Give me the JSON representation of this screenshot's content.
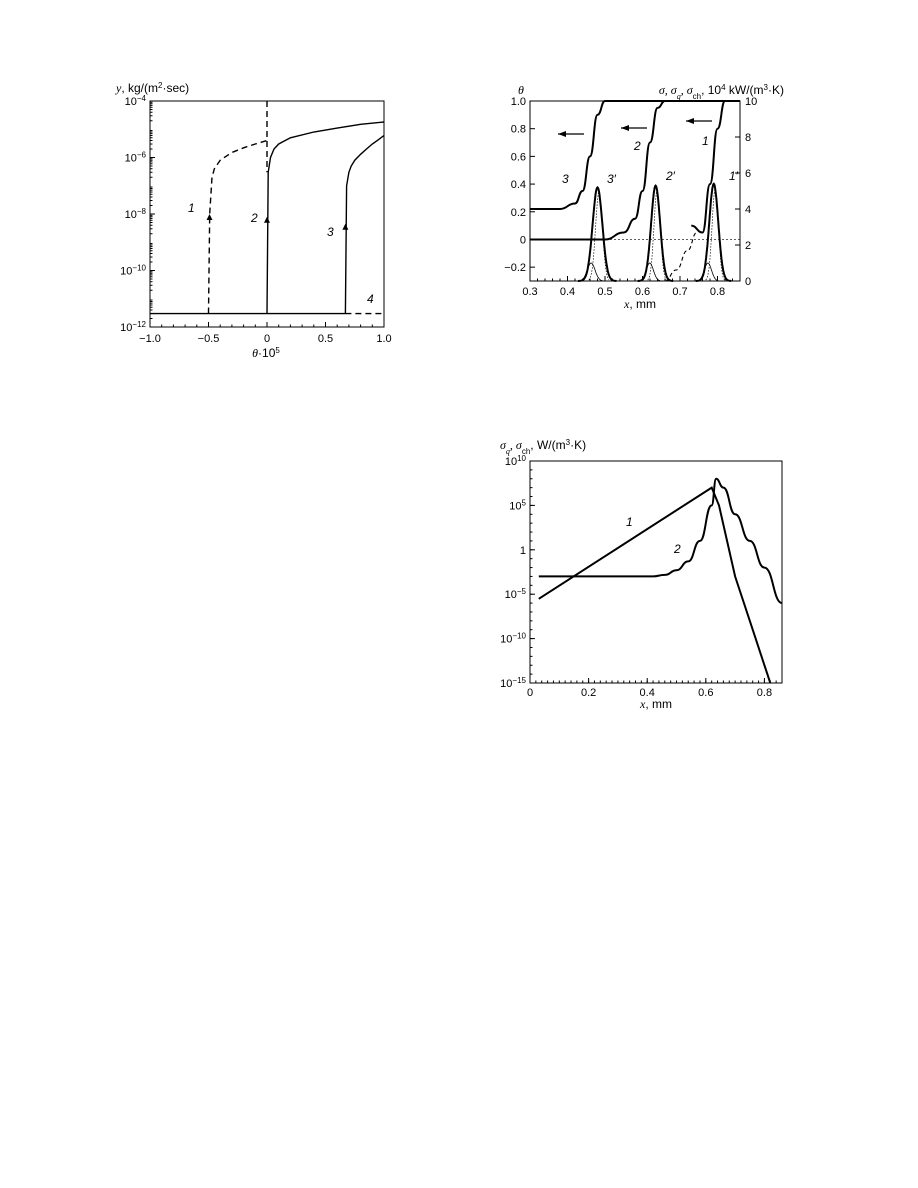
{
  "chart_data": [
    {
      "type": "line",
      "id": "left",
      "ylabel": "y, kg/(m2·sec)",
      "ylabel_sym": "y",
      "ylabel_unit": ", kg/(m",
      "ylabel_unit_sup": "2",
      "ylabel_unit_end": "·sec)",
      "xlabel": "θ·10^5",
      "xlabel_sym": "θ",
      "xlabel_mid": "·10",
      "xlabel_sup": "5",
      "xlim": [
        -1.0,
        1.0
      ],
      "ylim": [
        1e-12,
        0.0001
      ],
      "yscale": "log",
      "xticks": [
        "−1.0",
        "−0.5",
        "0",
        "0.5",
        "1.0"
      ],
      "yticks": [
        {
          "base": "10",
          "exp": "−4"
        },
        {
          "base": "10",
          "exp": "−6"
        },
        {
          "base": "10",
          "exp": "−8"
        },
        {
          "base": "10",
          "exp": "−10"
        },
        {
          "base": "10",
          "exp": "−12"
        }
      ],
      "series": [
        {
          "name": "1",
          "style": "dashed",
          "x": [
            -0.5,
            -0.49,
            -0.47,
            -0.45,
            -0.4,
            -0.3,
            -0.2,
            -0.1,
            0.0
          ],
          "y": [
            3e-12,
            1e-08,
            2e-07,
            4e-07,
            8e-07,
            1.5e-06,
            2.2e-06,
            3e-06,
            4e-06
          ]
        },
        {
          "name": "2",
          "style": "solid",
          "x": [
            0.0,
            0.01,
            0.03,
            0.06,
            0.1,
            0.2,
            0.4,
            0.6,
            0.8,
            1.0
          ],
          "y": [
            3e-12,
            3e-07,
            1e-06,
            2e-06,
            3e-06,
            5e-06,
            8e-06,
            1.1e-05,
            1.5e-05,
            1.8e-05
          ]
        },
        {
          "name": "3",
          "style": "solid",
          "x": [
            0.67,
            0.68,
            0.7,
            0.72,
            0.75,
            0.8,
            0.85,
            0.9,
            0.95,
            1.0
          ],
          "y": [
            3e-12,
            1e-07,
            3e-07,
            5e-07,
            8e-07,
            1.3e-06,
            2e-06,
            3e-06,
            4.2e-06,
            6e-06
          ]
        },
        {
          "name": "4",
          "style": "solid",
          "x": [
            -1.0,
            0.67
          ],
          "y": [
            3e-12,
            3e-12
          ]
        }
      ]
    },
    {
      "type": "line",
      "id": "topright",
      "ylabel_left": "θ",
      "ylabel_right_sym": "σ, σ",
      "ylabel_right_sub1": "q",
      "ylabel_right_mid": ", σ",
      "ylabel_right_sub2": "ch",
      "ylabel_right_unit": ", 10",
      "ylabel_right_sup": "4",
      "ylabel_right_end": " kW/(m",
      "ylabel_right_sup2": "3",
      "ylabel_right_end2": "·K)",
      "xlabel_sym": "x",
      "xlabel_unit": ", mm",
      "xlim": [
        0.3,
        0.86
      ],
      "ylim_left": [
        -0.3,
        1.0
      ],
      "ylim_right": [
        0,
        10
      ],
      "xticks": [
        "0.3",
        "0.4",
        "0.5",
        "0.6",
        "0.7",
        "0.8"
      ],
      "yticks_left": [
        "1.0",
        "0.8",
        "0.6",
        "0.4",
        "0.2",
        "0",
        "−0.2"
      ],
      "yticks_right": [
        "10",
        "8",
        "6",
        "4",
        "2",
        "0"
      ],
      "theta_series": [
        {
          "name": "1",
          "x": [
            0.3,
            0.66,
            0.69,
            0.72,
            0.75,
            0.78,
            0.8,
            0.82,
            0.86
          ],
          "y": [
            0,
            -0.3,
            -0.22,
            -0.08,
            0.05,
            0.4,
            0.8,
            1.0,
            1.0
          ]
        },
        {
          "name": "2",
          "x": [
            0.3,
            0.5,
            0.55,
            0.58,
            0.6,
            0.62,
            0.64,
            0.66,
            0.86
          ],
          "y": [
            0,
            0.0,
            0.05,
            0.15,
            0.35,
            0.7,
            0.95,
            1.0,
            1.0
          ]
        },
        {
          "name": "3",
          "x": [
            0.3,
            0.38,
            0.42,
            0.44,
            0.46,
            0.48,
            0.5,
            0.86
          ],
          "y": [
            0.22,
            0.22,
            0.26,
            0.35,
            0.6,
            0.9,
            1.0,
            1.0
          ]
        }
      ],
      "sigma_series": [
        {
          "name": "1'",
          "center": 0.79,
          "peak": 5.4,
          "width": 0.012
        },
        {
          "name": "2'",
          "center": 0.635,
          "peak": 5.3,
          "width": 0.012
        },
        {
          "name": "3'",
          "center": 0.48,
          "peak": 5.2,
          "width": 0.013
        }
      ],
      "curve_labels": [
        "1",
        "2",
        "3",
        "1′",
        "2′",
        "3′"
      ]
    },
    {
      "type": "line",
      "id": "bottomright",
      "ylabel_sym1": "σ",
      "ylabel_sub1": "q",
      "ylabel_mid": ", σ",
      "ylabel_sub2": "ch",
      "ylabel_unit": ",  W/(m",
      "ylabel_sup": "3",
      "ylabel_end": "·K)",
      "xlabel_sym": "x",
      "xlabel_unit": ", mm",
      "xlim": [
        0,
        0.86
      ],
      "ylim": [
        1e-15,
        10000000000.0
      ],
      "yscale": "log",
      "xticks": [
        "0",
        "0.2",
        "0.4",
        "0.6",
        "0.8"
      ],
      "yticks": [
        {
          "base": "10",
          "exp": "10"
        },
        {
          "base": "10",
          "exp": "5"
        },
        {
          "base": "1",
          "exp": ""
        },
        {
          "base": "10",
          "exp": "−5"
        },
        {
          "base": "10",
          "exp": "−10"
        },
        {
          "base": "10",
          "exp": "−15"
        }
      ],
      "series": [
        {
          "name": "1",
          "x": [
            0.03,
            0.62,
            0.645,
            0.7,
            0.75,
            0.8,
            0.82
          ],
          "y": [
            3e-06,
            10000000.0,
            100000.0,
            0.001,
            1e-08,
            1e-13,
            1e-15
          ]
        },
        {
          "name": "2",
          "x": [
            0.03,
            0.42,
            0.46,
            0.5,
            0.54,
            0.58,
            0.62,
            0.635,
            0.66,
            0.7,
            0.75,
            0.8,
            0.86
          ],
          "y": [
            0.001,
            0.001,
            0.0015,
            0.005,
            0.05,
            10,
            100000.0,
            100000000.0,
            10000000.0,
            10000.0,
            10,
            0.01,
            1e-06
          ]
        }
      ]
    }
  ]
}
